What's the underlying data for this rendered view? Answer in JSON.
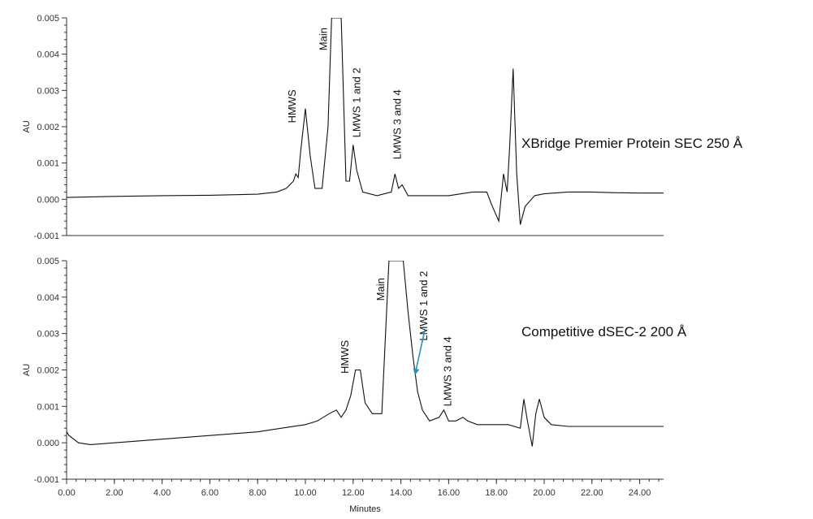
{
  "chart_data": [
    {
      "type": "line",
      "title": "",
      "xlabel": "",
      "ylabel": "AU",
      "xlim": [
        0,
        25
      ],
      "ylim": [
        -0.001,
        0.005
      ],
      "yticks": [
        "0.005",
        "0.004",
        "0.003",
        "0.002",
        "0.001",
        "0.000",
        "-0.001"
      ],
      "series_label": "XBridge Premier Protein SEC 250 Å",
      "annotations": [
        {
          "text": "HMWS",
          "x": 9.6,
          "y": 0.0021
        },
        {
          "text": "Main",
          "x": 10.9,
          "y": 0.0041
        },
        {
          "text": "LMWS 1 and 2",
          "x": 12.3,
          "y": 0.0017
        },
        {
          "text": "LMWS 3 and 4",
          "x": 14.0,
          "y": 0.0011
        }
      ],
      "x": [
        0.0,
        2.0,
        4.0,
        6.0,
        8.0,
        8.8,
        9.2,
        9.5,
        9.6,
        9.7,
        9.8,
        10.0,
        10.2,
        10.4,
        10.7,
        10.95,
        11.1,
        11.5,
        11.7,
        11.85,
        12.0,
        12.15,
        12.4,
        13.0,
        13.6,
        13.75,
        13.9,
        14.05,
        14.3,
        15.0,
        16.0,
        17.0,
        17.6,
        17.8,
        18.1,
        18.3,
        18.45,
        18.55,
        18.7,
        18.85,
        19.0,
        19.2,
        19.6,
        20.0,
        21.0,
        22.0,
        23.0,
        24.0,
        25.0
      ],
      "values": [
        5e-05,
        8e-05,
        0.0001,
        0.00011,
        0.00014,
        0.0002,
        0.0003,
        0.0005,
        0.0007,
        0.0006,
        0.0013,
        0.0025,
        0.0012,
        0.0003,
        0.0003,
        0.002,
        0.005,
        0.005,
        0.0005,
        0.0005,
        0.0015,
        0.0008,
        0.0002,
        0.0001,
        0.0002,
        0.0007,
        0.0003,
        0.0004,
        0.0001,
        0.0001,
        0.0001,
        0.0002,
        0.0002,
        -0.00015,
        -0.0006,
        0.0007,
        0.0002,
        0.0014,
        0.0036,
        0.0007,
        -0.0007,
        -0.0002,
        0.0001,
        0.00015,
        0.0002,
        0.0002,
        0.00018,
        0.00017,
        0.00017
      ]
    },
    {
      "type": "line",
      "title": "",
      "xlabel": "Minutes",
      "ylabel": "AU",
      "xlim": [
        0,
        25
      ],
      "ylim": [
        -0.001,
        0.005
      ],
      "xticks": [
        "0.00",
        "2.00",
        "4.00",
        "6.00",
        "8.00",
        "10.00",
        "12.00",
        "14.00",
        "16.00",
        "18.00",
        "20.00",
        "22.00",
        "24.00"
      ],
      "yticks": [
        "0.005",
        "0.004",
        "0.003",
        "0.002",
        "0.001",
        "0.000",
        "-0.001"
      ],
      "series_label": "Competitive dSEC-2 200 Å",
      "annotations": [
        {
          "text": "HMWS",
          "x": 11.8,
          "y": 0.0019
        },
        {
          "text": "Main",
          "x": 13.3,
          "y": 0.0039
        },
        {
          "text": "LMWS 1 and 2",
          "x": 15.1,
          "y": 0.0028
        },
        {
          "text": "LMWS 3 and 4",
          "x": 16.1,
          "y": 0.001
        }
      ],
      "arrow": {
        "from": {
          "x": 15.0,
          "y": 0.0031
        },
        "to": {
          "x": 14.6,
          "y": 0.0019
        },
        "color": "#2a8fbd"
      },
      "x": [
        0.0,
        0.1,
        0.5,
        1.0,
        2.0,
        4.0,
        6.0,
        8.0,
        9.0,
        10.0,
        10.5,
        11.0,
        11.3,
        11.5,
        11.7,
        11.9,
        12.1,
        12.3,
        12.5,
        12.8,
        13.2,
        13.5,
        13.6,
        13.9,
        14.1,
        14.3,
        14.5,
        14.7,
        14.9,
        15.2,
        15.6,
        15.8,
        16.0,
        16.3,
        16.6,
        16.8,
        17.2,
        17.8,
        18.5,
        19.0,
        19.15,
        19.3,
        19.5,
        19.65,
        19.8,
        20.0,
        20.3,
        21.0,
        22.0,
        23.0,
        24.0,
        25.0
      ],
      "values": [
        0.0003,
        0.0002,
        0.0,
        -5e-05,
        0.0,
        0.0001,
        0.0002,
        0.0003,
        0.0004,
        0.0005,
        0.0006,
        0.0008,
        0.0009,
        0.0007,
        0.0009,
        0.0013,
        0.002,
        0.002,
        0.0011,
        0.0008,
        0.0008,
        0.005,
        0.005,
        0.005,
        0.005,
        0.0036,
        0.0024,
        0.0014,
        0.0009,
        0.0006,
        0.0007,
        0.0009,
        0.0006,
        0.0006,
        0.0007,
        0.0006,
        0.0005,
        0.0005,
        0.0005,
        0.0004,
        0.0012,
        0.0006,
        -0.0001,
        0.0008,
        0.0012,
        0.0007,
        0.0005,
        0.00045,
        0.00045,
        0.00045,
        0.00045,
        0.00045
      ]
    }
  ]
}
